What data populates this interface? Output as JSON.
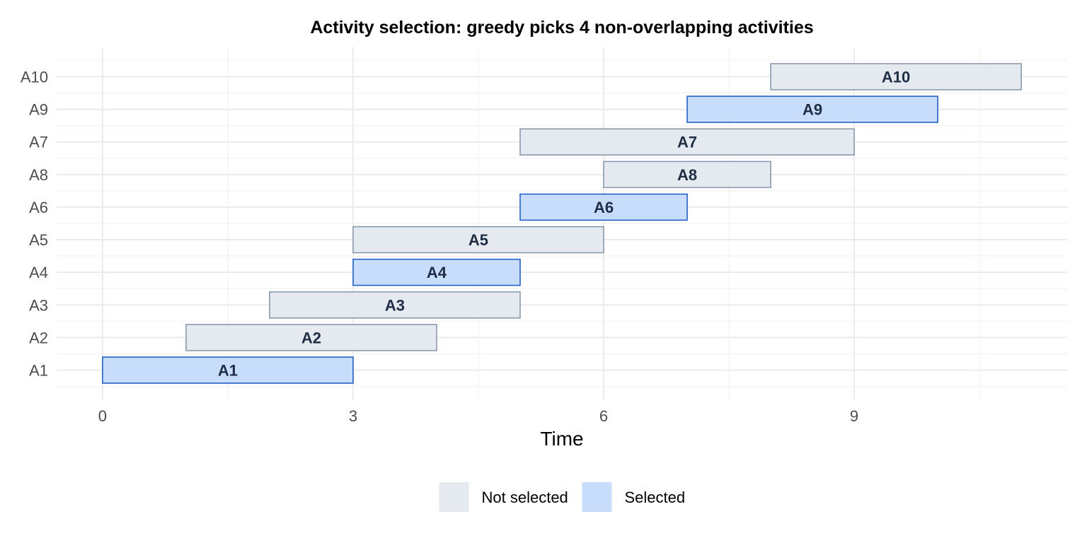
{
  "chart_data": {
    "type": "bar",
    "orientation": "horizontal-gantt",
    "title": "Activity selection: greedy picks 4 non-overlapping activities",
    "xlabel": "Time",
    "ylabel": "",
    "xlim": [
      -0.55,
      11.55
    ],
    "x_ticks": [
      0,
      3,
      6,
      9
    ],
    "grid": true,
    "legend_position": "bottom",
    "categories": [
      "A1",
      "A2",
      "A3",
      "A4",
      "A5",
      "A6",
      "A8",
      "A7",
      "A9",
      "A10"
    ],
    "activities": [
      {
        "label": "A1",
        "start": 0,
        "end": 3,
        "status": "Selected"
      },
      {
        "label": "A2",
        "start": 1,
        "end": 4,
        "status": "Not selected"
      },
      {
        "label": "A3",
        "start": 2,
        "end": 5,
        "status": "Not selected"
      },
      {
        "label": "A4",
        "start": 3,
        "end": 5,
        "status": "Selected"
      },
      {
        "label": "A5",
        "start": 3,
        "end": 6,
        "status": "Not selected"
      },
      {
        "label": "A6",
        "start": 5,
        "end": 7,
        "status": "Selected"
      },
      {
        "label": "A8",
        "start": 6,
        "end": 8,
        "status": "Not selected"
      },
      {
        "label": "A7",
        "start": 5,
        "end": 9,
        "status": "Not selected"
      },
      {
        "label": "A9",
        "start": 7,
        "end": 10,
        "status": "Selected"
      },
      {
        "label": "A10",
        "start": 8,
        "end": 11,
        "status": "Not selected"
      }
    ],
    "legend": [
      {
        "name": "Not selected",
        "fill": "#e5e9f0",
        "stroke": "#8a9aae"
      },
      {
        "name": "Selected",
        "fill": "#c8dcfb",
        "stroke": "#2160c4"
      }
    ]
  }
}
